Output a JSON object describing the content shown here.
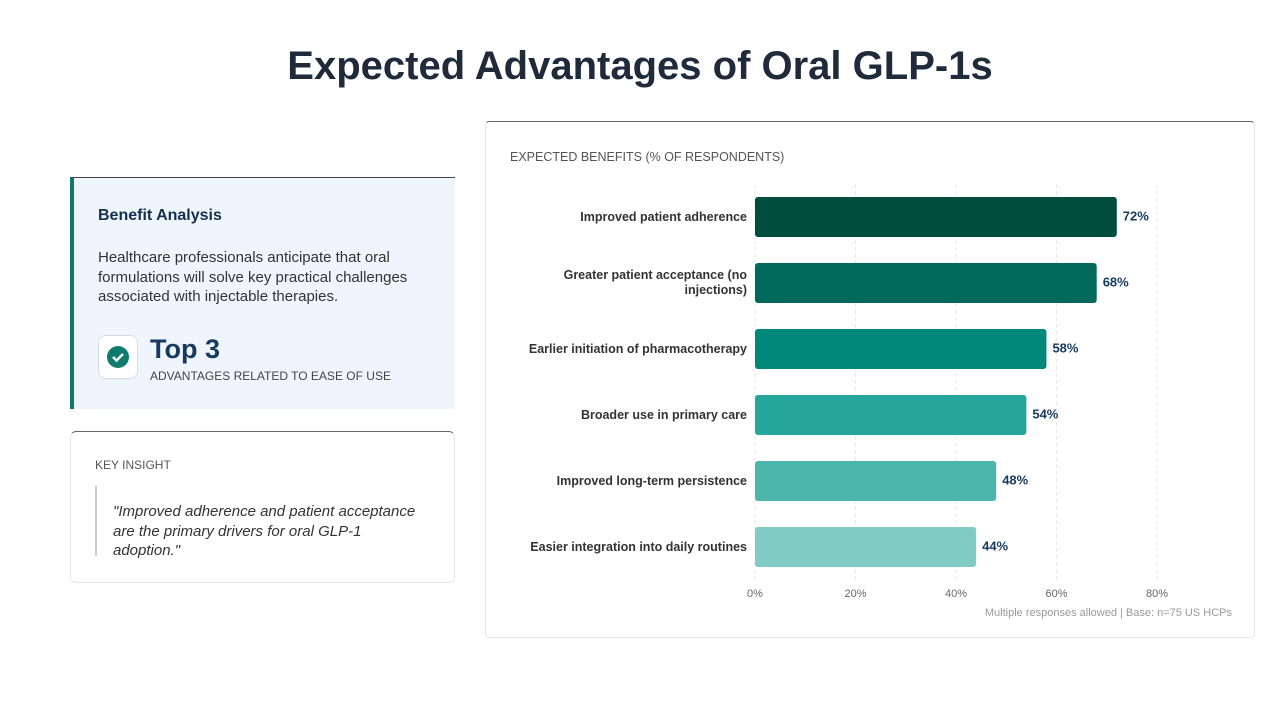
{
  "header": {
    "title": "Expected Advantages of Oral GLP-1s"
  },
  "analysis": {
    "heading": "Benefit Analysis",
    "body": "Healthcare professionals anticipate that oral formulations will solve key practical challenges associated with injectable therapies.",
    "stat": "Top 3",
    "stat_caption": "ADVANTAGES RELATED TO EASE OF USE"
  },
  "insight": {
    "heading": "KEY INSIGHT",
    "quote": "\"Improved adherence and patient acceptance are the primary drivers for oral GLP-1 adoption.\""
  },
  "chart_data": {
    "type": "hbar",
    "title": "EXPECTED BENEFITS (% OF RESPONDENTS)",
    "categories": [
      "Improved patient adherence",
      "Greater patient acceptance (no injections)",
      "Earlier initiation of pharmacotherapy",
      "Broader use in primary care",
      "Improved long-term persistence",
      "Easier integration into daily routines"
    ],
    "values": [
      72,
      68,
      58,
      54,
      48,
      44
    ],
    "value_labels": [
      "72%",
      "68%",
      "58%",
      "54%",
      "48%",
      "44%"
    ],
    "colors": [
      "#004d40",
      "#00695c",
      "#00897b",
      "#26a69a",
      "#4db6ac",
      "#80cbc4"
    ],
    "xlim": [
      0,
      80
    ],
    "xticks": [
      {
        "value": 0,
        "label": "0%"
      },
      {
        "value": 20,
        "label": "20%"
      },
      {
        "value": 40,
        "label": "40%"
      },
      {
        "value": 60,
        "label": "60%"
      },
      {
        "value": 80,
        "label": "80%"
      }
    ],
    "grid": true,
    "note": "Multiple responses allowed | Base: n=75 US HCPs"
  }
}
